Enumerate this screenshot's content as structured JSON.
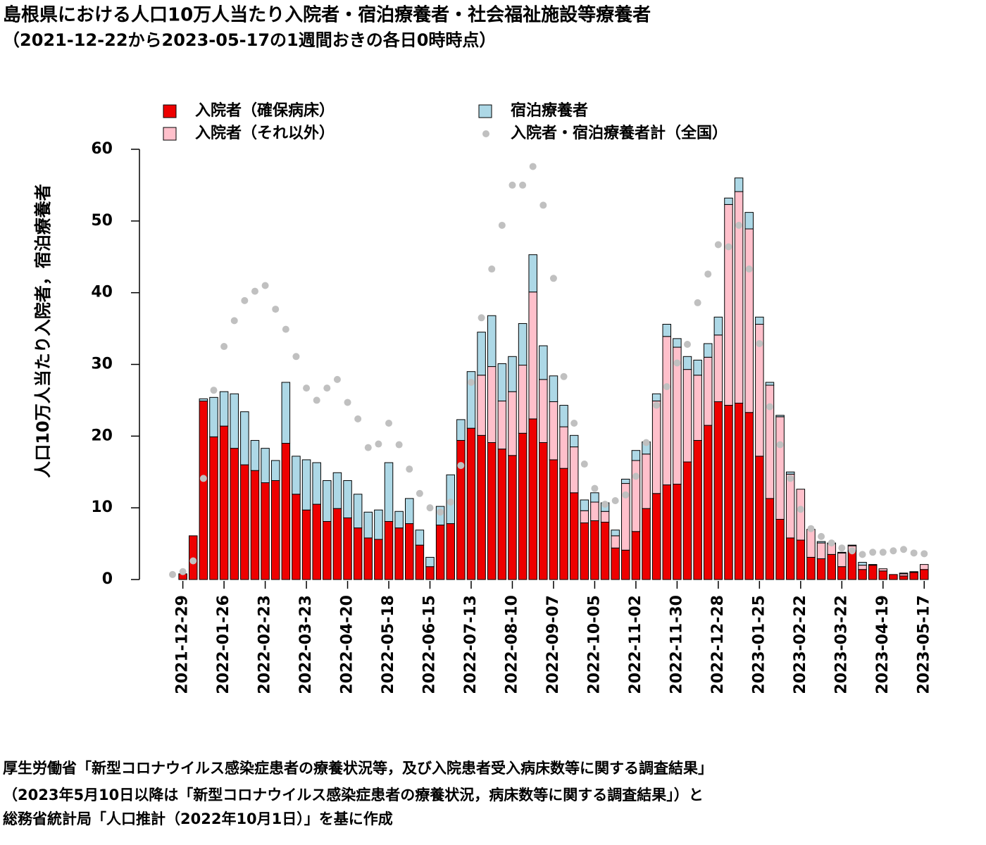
{
  "chart_data": {
    "type": "bar",
    "stacked": true,
    "title": "島根県における人口10万人当たり入院者・宿泊療養者・社会福祉施設等療養者",
    "subtitle": "（2021-12-22から2023-05-17の1週間おきの各日0時時点）",
    "y_label": "人口10万人当たり入院者，宿泊療養者",
    "categories": [
      null,
      "2021-12-29",
      null,
      null,
      null,
      "2022-01-26",
      null,
      null,
      null,
      "2022-02-23",
      null,
      null,
      null,
      "2022-03-23",
      null,
      null,
      null,
      "2022-04-20",
      null,
      null,
      null,
      "2022-05-18",
      null,
      null,
      null,
      "2022-06-15",
      null,
      null,
      null,
      "2022-07-13",
      null,
      null,
      null,
      "2022-08-10",
      null,
      null,
      null,
      "2022-09-07",
      null,
      null,
      null,
      "2022-10-05",
      null,
      null,
      null,
      "2022-11-02",
      null,
      null,
      null,
      "2022-11-30",
      null,
      null,
      null,
      "2022-12-28",
      null,
      null,
      null,
      "2023-01-25",
      null,
      null,
      null,
      "2023-02-22",
      null,
      null,
      null,
      "2023-03-22",
      null,
      null,
      null,
      "2023-04-19",
      null,
      null,
      null,
      "2023-05-17"
    ],
    "series": [
      {
        "name": "入院者（確保病床）",
        "color": "#ee0000",
        "values": [
          0,
          0.8,
          6.1,
          24.9,
          19.9,
          21.4,
          18.3,
          16.0,
          15.2,
          13.5,
          13.8,
          19.0,
          11.9,
          9.7,
          10.5,
          8.1,
          9.9,
          8.6,
          7.2,
          5.8,
          5.6,
          8.1,
          7.2,
          7.8,
          4.8,
          1.8,
          7.6,
          7.8,
          19.4,
          21.1,
          20.1,
          19.1,
          18.2,
          17.3,
          20.4,
          22.4,
          19.1,
          16.7,
          15.5,
          12.1,
          7.9,
          8.2,
          8.0,
          4.4,
          4.1,
          6.7,
          9.9,
          12.0,
          13.2,
          13.3,
          16.4,
          19.4,
          21.5,
          24.8,
          24.3,
          24.6,
          23.3,
          17.2,
          11.3,
          8.4,
          5.8,
          5.5,
          3.1,
          2.9,
          3.5,
          1.8,
          4.0,
          1.4,
          2.0,
          1.2,
          0.7,
          0.5,
          1.0,
          1.4
        ]
      },
      {
        "name": "入院者（それ以外）",
        "color": "#ffc0cb",
        "values": [
          0,
          0,
          0,
          0,
          0,
          0,
          0,
          0,
          0,
          0,
          0,
          0,
          0,
          0,
          0,
          0,
          0,
          0,
          0,
          0,
          0,
          0,
          0,
          0,
          0,
          0,
          0,
          0,
          0,
          0,
          8.4,
          10.6,
          6.7,
          8.9,
          9.5,
          17.7,
          8.8,
          8.1,
          5.8,
          6.4,
          1.7,
          2.6,
          1.5,
          1.7,
          9.3,
          9.9,
          7.6,
          12.9,
          20.7,
          19.1,
          12.9,
          9.1,
          9.5,
          9.3,
          28.0,
          29.5,
          25.6,
          18.4,
          15.8,
          14.3,
          8.9,
          7.1,
          3.9,
          2.2,
          1.5,
          1.9,
          0.7,
          0.6,
          0.1,
          0.3,
          0,
          0.3,
          0.1,
          0.7
        ]
      },
      {
        "name": "宿泊療養者",
        "color": "#add8e6",
        "values": [
          0,
          0,
          0,
          0.3,
          5.5,
          4.8,
          7.6,
          7.4,
          4.2,
          4.8,
          2.8,
          8.5,
          5.3,
          7.0,
          5.8,
          5.7,
          5.0,
          5.2,
          4.7,
          3.6,
          4.1,
          8.2,
          2.3,
          3.5,
          2.1,
          1.3,
          2.6,
          6.8,
          2.9,
          7.9,
          6.0,
          7.1,
          5.2,
          4.9,
          5.8,
          5.2,
          4.7,
          3.6,
          3.0,
          1.6,
          1.5,
          1.3,
          1.2,
          0.8,
          0.6,
          1.4,
          1.7,
          1.0,
          1.7,
          1.2,
          1.8,
          2.1,
          1.9,
          2.5,
          0.9,
          1.9,
          2.3,
          1.0,
          0.4,
          0.2,
          0.3,
          0,
          0,
          0.2,
          0.1,
          0.1,
          0.1,
          0.4,
          0,
          0,
          0,
          0.1,
          0,
          0
        ]
      },
      {
        "name": "入院者・宿泊療養者計（全国）",
        "color": "#c0c0c0",
        "type": "scatter",
        "values": [
          0.7,
          1.1,
          2.6,
          14.1,
          26.4,
          32.5,
          36.1,
          38.9,
          40.2,
          41.0,
          37.7,
          34.9,
          31.1,
          26.7,
          25.0,
          26.7,
          27.9,
          24.7,
          22.4,
          18.4,
          18.9,
          21.8,
          18.8,
          15.4,
          12.0,
          10.0,
          9.4,
          10.8,
          15.9,
          27.5,
          36.5,
          43.3,
          49.4,
          55.0,
          55.0,
          57.6,
          52.2,
          42.0,
          28.3,
          21.8,
          16.1,
          12.7,
          10.5,
          11.0,
          11.8,
          14.4,
          19.1,
          24.3,
          26.9,
          30.2,
          32.8,
          38.6,
          42.6,
          46.7,
          46.4,
          49.4,
          43.3,
          32.9,
          24.1,
          18.8,
          14.1,
          9.8,
          7.1,
          6.0,
          5.1,
          4.4,
          4.0,
          3.5,
          3.8,
          3.8,
          4.0,
          4.2,
          3.7,
          3.6
        ]
      }
    ],
    "ylim": [
      0,
      60
    ],
    "yticks": [
      0,
      10,
      20,
      30,
      40,
      50,
      60
    ],
    "source": [
      "厚生労働省「新型コロナウイルス感染症患者の療養状況等，及び入院患者受入病床数等に関する調査結果」",
      "（2023年5月10日以降は「新型コロナウイルス感染症患者の療養状況，病床数等に関する調査結果」）と",
      "総務省統計局「人口推計（2022年10月1日）」を基に作成"
    ]
  }
}
